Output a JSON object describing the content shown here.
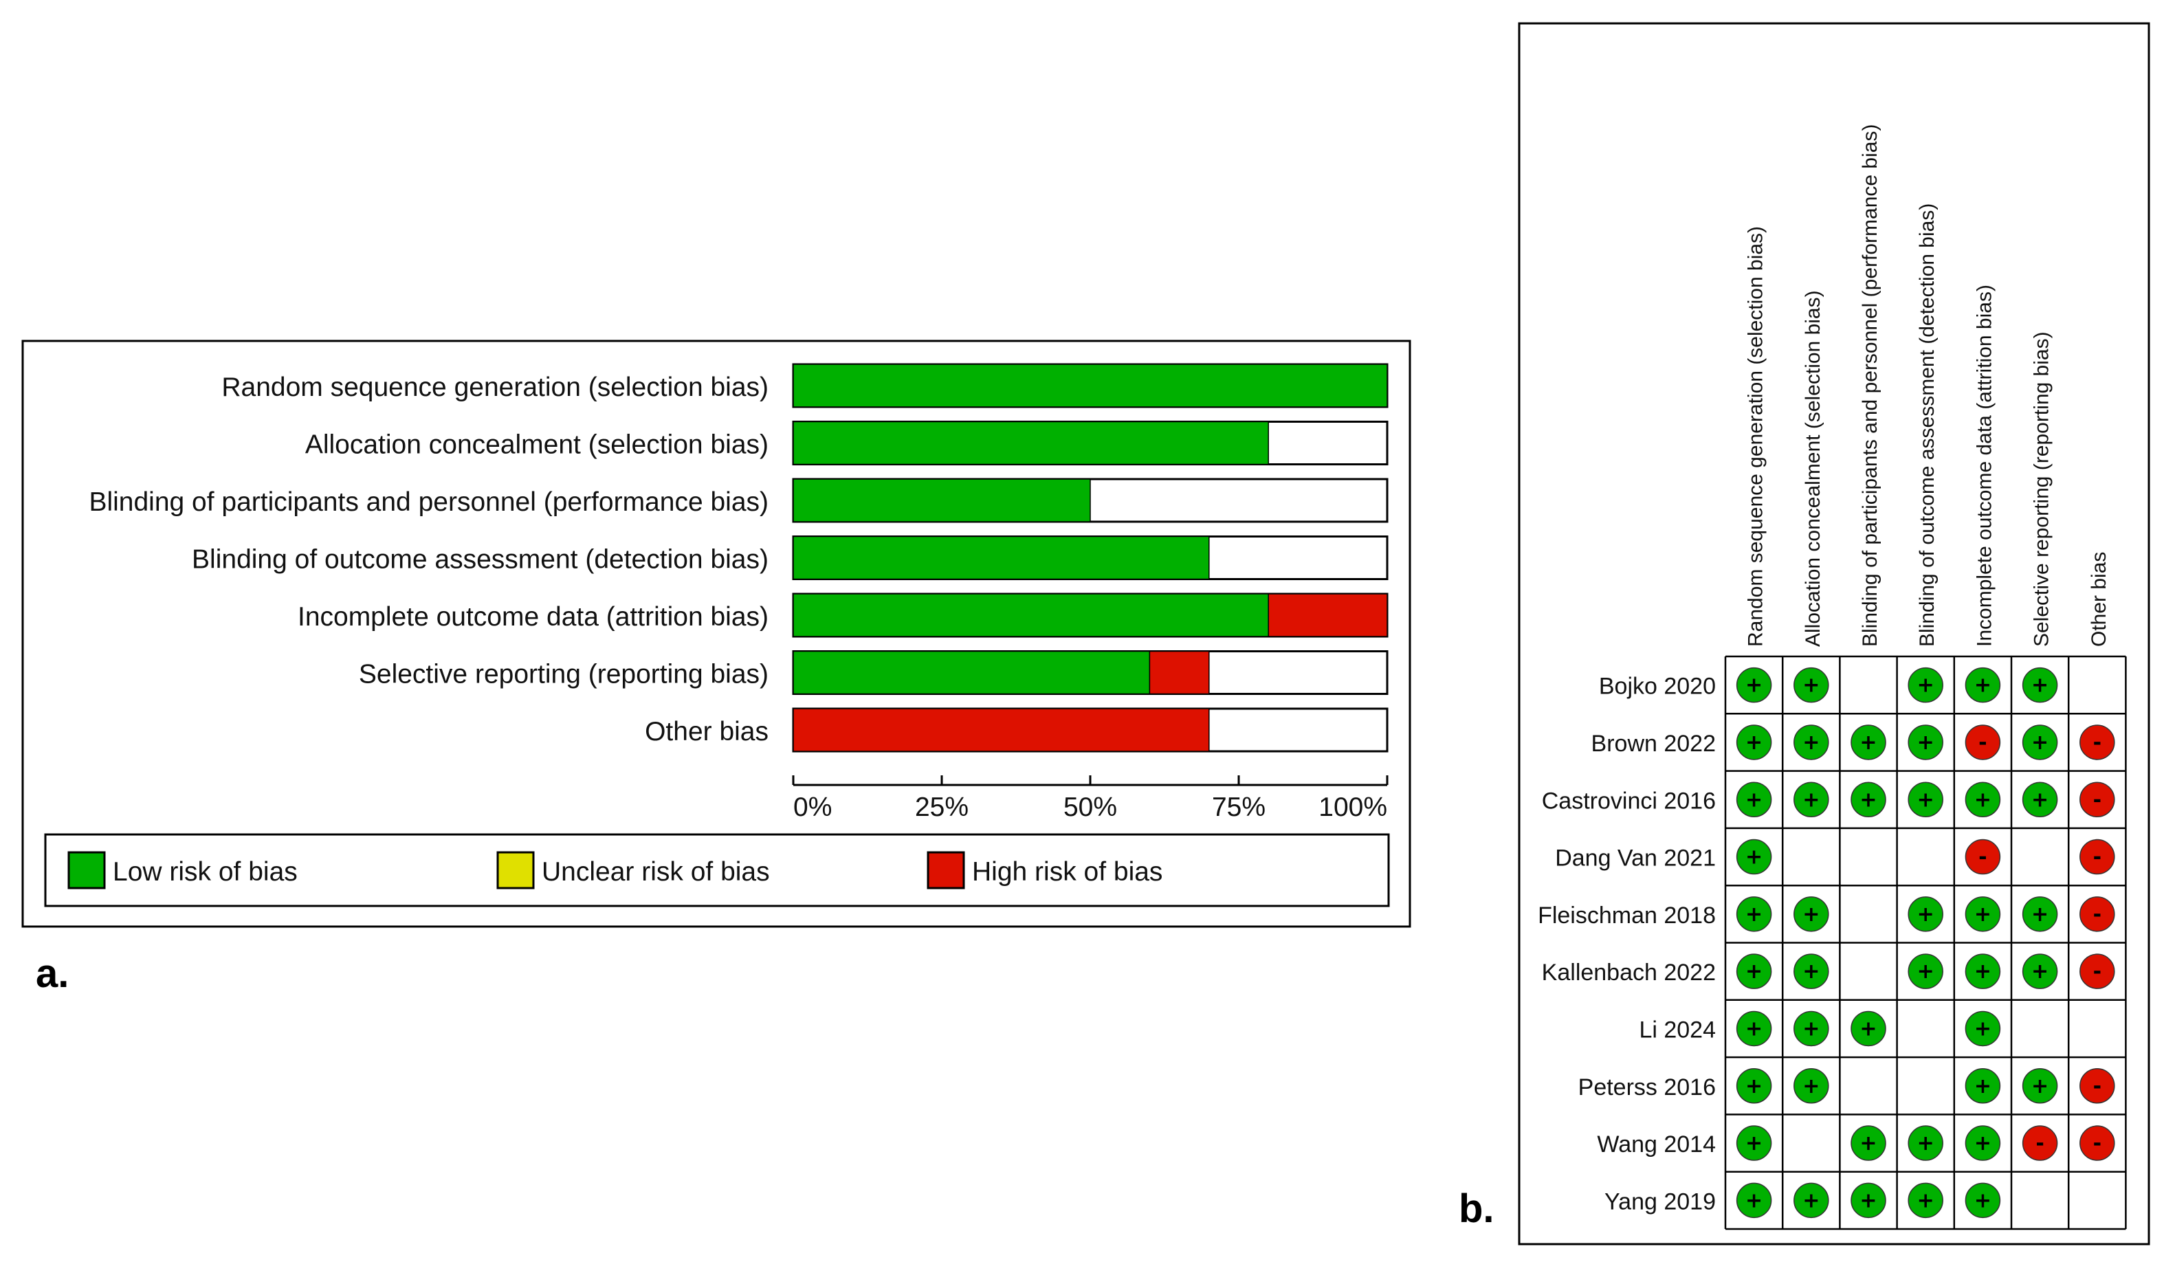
{
  "colors": {
    "low": "#00b000",
    "unclear": "#e0e000",
    "high": "#dd1100",
    "frame": "#000000"
  },
  "chart_data": [
    {
      "type": "bar",
      "stacked": true,
      "orientation": "horizontal",
      "panel_label": "a.",
      "categories": [
        "Random sequence generation (selection bias)",
        "Allocation concealment (selection bias)",
        "Blinding of participants and personnel (performance bias)",
        "Blinding of outcome assessment (detection bias)",
        "Incomplete outcome data (attrition bias)",
        "Selective reporting (reporting bias)",
        "Other bias"
      ],
      "series": [
        {
          "name": "Low risk of bias",
          "values": [
            100,
            80,
            50,
            70,
            80,
            60,
            0
          ]
        },
        {
          "name": "Unclear risk of bias",
          "values": [
            0,
            0,
            0,
            0,
            0,
            0,
            0
          ]
        },
        {
          "name": "High risk of bias",
          "values": [
            0,
            0,
            0,
            0,
            20,
            10,
            70
          ]
        }
      ],
      "xlim": [
        0,
        100
      ],
      "xticks": [
        "0%",
        "25%",
        "50%",
        "75%",
        "100%"
      ],
      "legend": [
        "Low risk of bias",
        "Unclear risk of bias",
        "High risk of bias"
      ]
    },
    {
      "type": "table",
      "panel_label": "b.",
      "columns": [
        "Random sequence generation (selection bias)",
        "Allocation concealment (selection bias)",
        "Blinding of participants and personnel (performance bias)",
        "Blinding of outcome assessment (detection bias)",
        "Incomplete outcome data (attrition bias)",
        "Selective reporting (reporting bias)",
        "Other bias"
      ],
      "rows": [
        {
          "study": "Bojko  2020",
          "judgements": [
            "+",
            "+",
            "",
            "+",
            "+",
            "+",
            ""
          ]
        },
        {
          "study": "Brown 2022",
          "judgements": [
            "+",
            "+",
            "+",
            "+",
            "-",
            "+",
            "-"
          ]
        },
        {
          "study": "Castrovinci 2016",
          "judgements": [
            "+",
            "+",
            "+",
            "+",
            "+",
            "+",
            "-"
          ]
        },
        {
          "study": "Dang Van 2021",
          "judgements": [
            "+",
            "",
            "",
            "",
            "-",
            "",
            "-"
          ]
        },
        {
          "study": "Fleischman 2018",
          "judgements": [
            "+",
            "+",
            "",
            "+",
            "+",
            "+",
            "-"
          ]
        },
        {
          "study": "Kallenbach 2022",
          "judgements": [
            "+",
            "+",
            "",
            "+",
            "+",
            "+",
            "-"
          ]
        },
        {
          "study": "Li 2024",
          "judgements": [
            "+",
            "+",
            "+",
            "",
            "+",
            "",
            ""
          ]
        },
        {
          "study": "Peterss 2016",
          "judgements": [
            "+",
            "+",
            "",
            "",
            "+",
            "+",
            "-"
          ]
        },
        {
          "study": "Wang 2014",
          "judgements": [
            "+",
            "",
            "+",
            "+",
            "+",
            "-",
            "-"
          ]
        },
        {
          "study": "Yang 2019",
          "judgements": [
            "+",
            "+",
            "+",
            "+",
            "+",
            "",
            ""
          ]
        }
      ]
    }
  ]
}
